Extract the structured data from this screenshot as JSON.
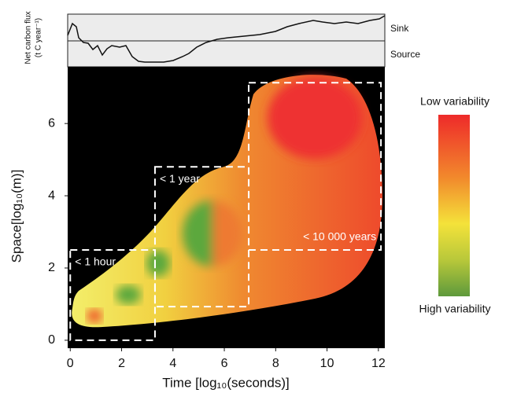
{
  "chart_data": {
    "type": "region",
    "xlabel": "Time [log₁₀(seconds)]",
    "ylabel": "Space[log₁₀(m)]",
    "xlim": [
      -0.1,
      12.25
    ],
    "ylim": [
      -0.22,
      7.57
    ],
    "xticks": [
      0,
      2,
      4,
      6,
      8,
      10,
      12
    ],
    "yticks": [
      0,
      2,
      4,
      6
    ],
    "regions": [
      {
        "label": "< 1 hour",
        "x": [
          0,
          3.3
        ],
        "y": [
          0,
          2.5
        ]
      },
      {
        "label": "< 1 year",
        "x": [
          3.3,
          6.95
        ],
        "y": [
          0.93,
          4.8
        ]
      },
      {
        "label": "< 10 000 years",
        "x": [
          6.95,
          12.1
        ],
        "y": [
          2.5,
          7.13
        ]
      }
    ],
    "flux_panel": {
      "ylabel": "Net carbon flux",
      "yunit": "(t C year⁻¹)",
      "upper": "Sink",
      "lower": "Source"
    },
    "colorbar": {
      "top": "Low variability",
      "bottom": "High variability"
    }
  }
}
